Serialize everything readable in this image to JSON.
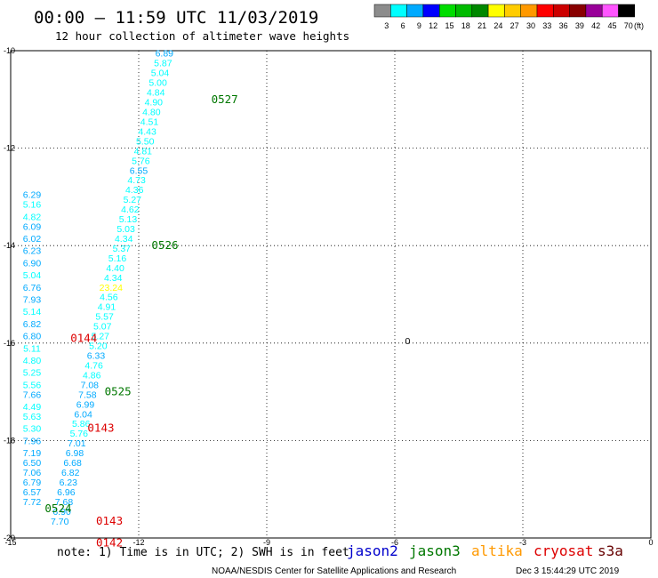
{
  "header": {
    "title": "00:00 – 11:59 UTC 11/03/2019",
    "subtitle": "12 hour collection of altimeter wave heights"
  },
  "legend": {
    "unit": "(ft)",
    "labels": [
      "3",
      "6",
      "9",
      "12",
      "15",
      "18",
      "21",
      "24",
      "27",
      "30",
      "33",
      "36",
      "39",
      "42",
      "45",
      "70"
    ],
    "colors": [
      "#8c8c8c",
      "#00ffff",
      "#00aaff",
      "#0000ff",
      "#00dd00",
      "#00bb00",
      "#008800",
      "#ffff00",
      "#ffcc00",
      "#ff9900",
      "#ff0000",
      "#cc0000",
      "#880000",
      "#990099",
      "#ff55ff",
      "#000000"
    ]
  },
  "chart_data": {
    "type": "scatter",
    "title": "00:00 – 11:59 UTC 11/03/2019",
    "subtitle": "12 hour collection of altimeter wave heights",
    "xlim": [
      -15,
      0
    ],
    "ylim": [
      -20,
      -10
    ],
    "x_ticks": [
      -15,
      -12,
      -9,
      -6,
      -3,
      0
    ],
    "y_ticks": [
      -10,
      -12,
      -14,
      -16,
      -18,
      -20
    ],
    "grid": true,
    "tracks": [
      {
        "satellite": "jason3",
        "points": [
          {
            "x": -11.4,
            "y": -10.05,
            "v": "6.89"
          },
          {
            "x": -11.43,
            "y": -10.25,
            "v": "5.87"
          },
          {
            "x": -11.5,
            "y": -10.45,
            "v": "5.04"
          },
          {
            "x": -11.55,
            "y": -10.65,
            "v": "5.00"
          },
          {
            "x": -11.6,
            "y": -10.85,
            "v": "4.84"
          },
          {
            "x": -11.65,
            "y": -11.05,
            "v": "4.90"
          },
          {
            "x": -11.7,
            "y": -11.25,
            "v": "4.80"
          },
          {
            "x": -11.75,
            "y": -11.45,
            "v": "4.51"
          },
          {
            "x": -11.8,
            "y": -11.65,
            "v": "4.43"
          },
          {
            "x": -11.85,
            "y": -11.85,
            "v": "5.50"
          },
          {
            "x": -11.9,
            "y": -12.05,
            "v": "4.81"
          },
          {
            "x": -11.95,
            "y": -12.25,
            "v": "5.76"
          },
          {
            "x": -12.0,
            "y": -12.45,
            "v": "6.55"
          },
          {
            "x": -12.05,
            "y": -12.65,
            "v": "4.73"
          },
          {
            "x": -12.1,
            "y": -12.85,
            "v": "4.36"
          },
          {
            "x": -12.15,
            "y": -13.05,
            "v": "5.27"
          },
          {
            "x": -12.2,
            "y": -13.25,
            "v": "4.62"
          },
          {
            "x": -12.25,
            "y": -13.45,
            "v": "5.13"
          },
          {
            "x": -12.3,
            "y": -13.65,
            "v": "5.03"
          },
          {
            "x": -12.35,
            "y": -13.85,
            "v": "4.34"
          },
          {
            "x": -12.4,
            "y": -14.05,
            "v": "5.37"
          },
          {
            "x": -12.5,
            "y": -14.25,
            "v": "5.16"
          },
          {
            "x": -12.55,
            "y": -14.45,
            "v": "4.40"
          },
          {
            "x": -12.6,
            "y": -14.65,
            "v": "4.34"
          },
          {
            "x": -12.65,
            "y": -14.85,
            "v": "23.24"
          },
          {
            "x": -12.7,
            "y": -15.05,
            "v": "4.56"
          },
          {
            "x": -12.75,
            "y": -15.25,
            "v": "4.91"
          },
          {
            "x": -12.8,
            "y": -15.45,
            "v": "5.57"
          },
          {
            "x": -12.85,
            "y": -15.65,
            "v": "5.07"
          },
          {
            "x": -12.9,
            "y": -15.85,
            "v": "5.27"
          },
          {
            "x": -12.95,
            "y": -16.05,
            "v": "5.20"
          },
          {
            "x": -13.0,
            "y": -16.25,
            "v": "6.33"
          },
          {
            "x": -13.05,
            "y": -16.45,
            "v": "4.76"
          },
          {
            "x": -13.1,
            "y": -16.65,
            "v": "4.86"
          },
          {
            "x": -13.15,
            "y": -16.85,
            "v": "7.08"
          },
          {
            "x": -13.2,
            "y": -17.05,
            "v": "7.58"
          },
          {
            "x": -13.25,
            "y": -17.25,
            "v": "6.99"
          },
          {
            "x": -13.3,
            "y": -17.45,
            "v": "6.04"
          },
          {
            "x": -13.35,
            "y": -17.65,
            "v": "5.86"
          },
          {
            "x": -13.4,
            "y": -17.85,
            "v": "5.76"
          },
          {
            "x": -13.45,
            "y": -18.05,
            "v": "7.01"
          },
          {
            "x": -13.5,
            "y": -18.25,
            "v": "6.98"
          },
          {
            "x": -13.55,
            "y": -18.45,
            "v": "6.68"
          },
          {
            "x": -13.6,
            "y": -18.65,
            "v": "6.82"
          },
          {
            "x": -13.65,
            "y": -18.85,
            "v": "6.23"
          },
          {
            "x": -13.7,
            "y": -19.05,
            "v": "6.96"
          },
          {
            "x": -13.75,
            "y": -19.25,
            "v": "7.68"
          },
          {
            "x": -13.8,
            "y": -19.45,
            "v": "6.90"
          },
          {
            "x": -13.85,
            "y": -19.65,
            "v": "7.70"
          }
        ]
      },
      {
        "satellite": "cryosat",
        "points": [
          {
            "x": -14.5,
            "y": -12.95,
            "v": "6.29"
          },
          {
            "x": -14.5,
            "y": -13.15,
            "v": "5.16"
          },
          {
            "x": -14.5,
            "y": -13.4,
            "v": "4.82"
          },
          {
            "x": -14.5,
            "y": -13.6,
            "v": "6.09"
          },
          {
            "x": -14.5,
            "y": -13.85,
            "v": "6.02"
          },
          {
            "x": -14.5,
            "y": -14.1,
            "v": "6.23"
          },
          {
            "x": -14.5,
            "y": -14.35,
            "v": "6.90"
          },
          {
            "x": -14.5,
            "y": -14.6,
            "v": "5.04"
          },
          {
            "x": -14.5,
            "y": -14.85,
            "v": "6.76"
          },
          {
            "x": -14.5,
            "y": -15.1,
            "v": "7.93"
          },
          {
            "x": -14.5,
            "y": -15.35,
            "v": "5.14"
          },
          {
            "x": -14.5,
            "y": -15.6,
            "v": "6.82"
          },
          {
            "x": -14.5,
            "y": -15.85,
            "v": "6.80"
          },
          {
            "x": -14.5,
            "y": -16.1,
            "v": "5.11"
          },
          {
            "x": -14.5,
            "y": -16.35,
            "v": "4.80"
          },
          {
            "x": -14.5,
            "y": -16.6,
            "v": "5.25"
          },
          {
            "x": -14.5,
            "y": -16.85,
            "v": "5.56"
          },
          {
            "x": -14.5,
            "y": -17.05,
            "v": "7.66"
          },
          {
            "x": -14.5,
            "y": -17.3,
            "v": "4.49"
          },
          {
            "x": -14.5,
            "y": -17.5,
            "v": "5.63"
          },
          {
            "x": -14.5,
            "y": -17.75,
            "v": "5.30"
          },
          {
            "x": -14.5,
            "y": -18.0,
            "v": "7.96"
          },
          {
            "x": -14.5,
            "y": -18.25,
            "v": "7.19"
          },
          {
            "x": -14.5,
            "y": -18.45,
            "v": "6.50"
          },
          {
            "x": -14.5,
            "y": -18.65,
            "v": "7.06"
          },
          {
            "x": -14.5,
            "y": -18.85,
            "v": "6.79"
          },
          {
            "x": -14.5,
            "y": -19.05,
            "v": "6.57"
          },
          {
            "x": -14.5,
            "y": -19.25,
            "v": "7.72"
          }
        ]
      }
    ],
    "pass_times": [
      {
        "label": "0527",
        "x": -10.3,
        "y": -11.0,
        "satellite": "jason3"
      },
      {
        "label": "0526",
        "x": -11.7,
        "y": -14.0,
        "satellite": "jason3"
      },
      {
        "label": "0525",
        "x": -12.8,
        "y": -17.0,
        "satellite": "jason3"
      },
      {
        "label": "0524",
        "x": -14.2,
        "y": -19.4,
        "satellite": "jason3"
      },
      {
        "label": "0144",
        "x": -13.6,
        "y": -15.9,
        "satellite": "cryosat"
      },
      {
        "label": "0143",
        "x": -13.2,
        "y": -17.75,
        "satellite": "cryosat"
      },
      {
        "label": "0143",
        "x": -13.0,
        "y": -19.65,
        "satellite": "cryosat"
      },
      {
        "label": "0142",
        "x": -13.0,
        "y": -20.1,
        "satellite": "cryosat"
      }
    ],
    "marker_label": {
      "label": "0",
      "x": -5.7,
      "y": -15.95
    }
  },
  "note": "note: 1) Time is in UTC; 2) SWH is in feet",
  "satellites": [
    {
      "name": "jason2",
      "color": "#0000cc"
    },
    {
      "name": "jason3",
      "color": "#007700"
    },
    {
      "name": "altika",
      "color": "#ff9900"
    },
    {
      "name": "cryosat",
      "color": "#dd0000"
    },
    {
      "name": "s3a",
      "color": "#660000"
    }
  ],
  "footer": {
    "credit": "NOAA/NESDIS Center for Satellite Applications and Research",
    "timestamp": "Dec  3 15:44:29 UTC 2019"
  }
}
